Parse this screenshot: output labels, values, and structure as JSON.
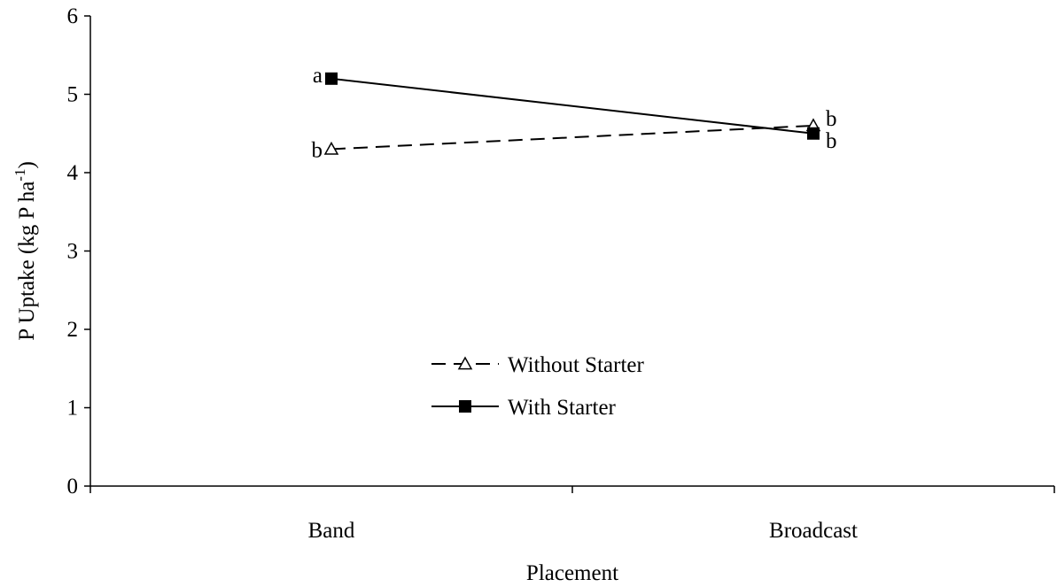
{
  "chart_data": {
    "type": "line",
    "title": "",
    "xlabel": "Placement",
    "ylabel": "P Uptake (kg P ha",
    "ylabel_superscript": "-1",
    "ylabel_close": ")",
    "categories": [
      "Band",
      "Broadcast"
    ],
    "ylim": [
      0,
      6
    ],
    "yticks": [
      "0",
      "1",
      "2",
      "3",
      "4",
      "5",
      "6"
    ],
    "grid": false,
    "legend_position": "center-left",
    "series": [
      {
        "name": "Without Starter",
        "values": [
          4.3,
          4.6
        ],
        "point_labels": [
          "b",
          "b"
        ],
        "line_style": "dashed",
        "marker": "open-triangle",
        "color": "#000000"
      },
      {
        "name": "With Starter",
        "values": [
          5.2,
          4.5
        ],
        "point_labels": [
          "a",
          "b"
        ],
        "line_style": "solid",
        "marker": "filled-square",
        "color": "#000000"
      }
    ]
  }
}
